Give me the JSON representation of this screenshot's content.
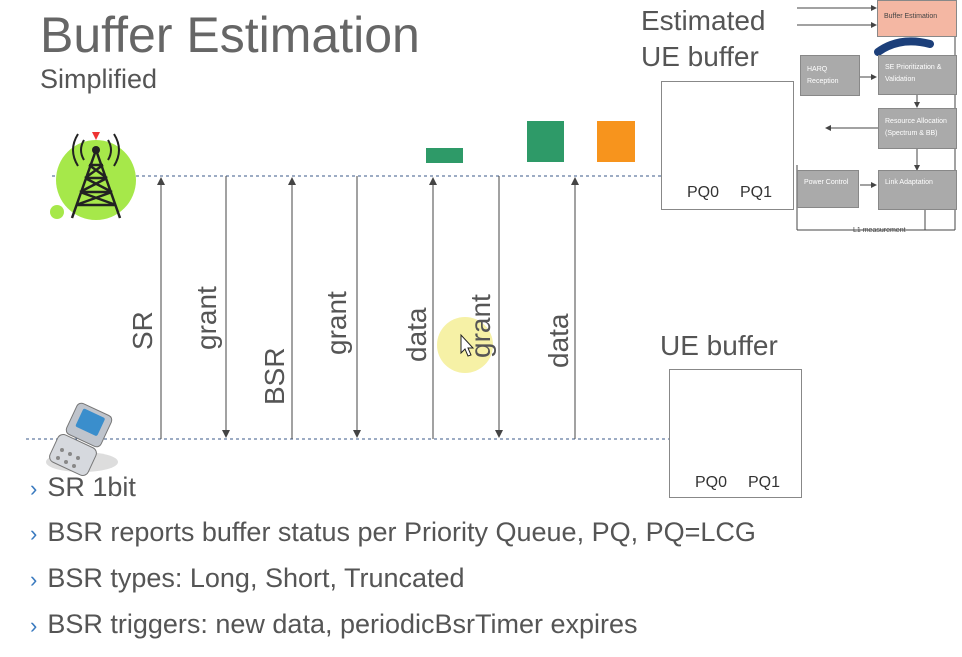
{
  "title": "Buffer Estimation",
  "subtitle": "Simplified",
  "estimated_label_1": "Estimated",
  "estimated_label_2": "UE buffer",
  "ue_buffer_label": "UE buffer",
  "est_pq0": "PQ0",
  "est_pq1": "PQ1",
  "ue_pq0": "PQ0",
  "ue_pq1": "PQ1",
  "messages": [
    "SR",
    "grant",
    "BSR",
    "grant",
    "data",
    "grant",
    "data"
  ],
  "scheduler": {
    "buffer_estimation": "Buffer Estimation",
    "harq": "HARQ Reception",
    "se": "SE Prioritization & Validation",
    "resource": "Resource Allocation (Spectrum & BB)",
    "power": "Power Control",
    "link": "Link Adaptation",
    "l1": "L1 measurement"
  },
  "bullets": [
    "SR 1bit",
    "BSR reports buffer status per Priority Queue, PQ, PQ=LCG",
    "BSR types: Long, Short, Truncated",
    "BSR triggers: new data, periodicBsrTimer expires"
  ],
  "colors": {
    "green": "#2e9a68",
    "orange": "#f7941d",
    "salmon": "#f4b7a3",
    "cursor": "#f5ef9c"
  }
}
